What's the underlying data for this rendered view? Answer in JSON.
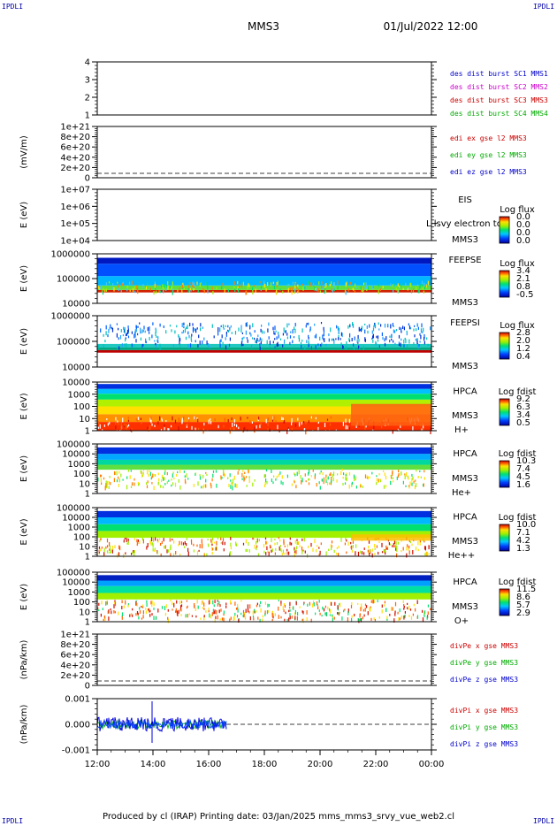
{
  "header": {
    "spacecraft": "MMS3",
    "datetime": "01/Jul/2022 12:00",
    "corner_mark": "IPDLI"
  },
  "footer": {
    "text": "Produced by cl (IRAP)    Printing date: 03/Jan/2025    mms_mms3_srvy_vue_web2.cl"
  },
  "time_axis": {
    "ticks": [
      "12:00",
      "14:00",
      "16:00",
      "18:00",
      "20:00",
      "22:00",
      "00:00"
    ]
  },
  "chart_data": [
    {
      "type": "line",
      "ylabel": "",
      "yticks": [
        "1",
        "2",
        "3",
        "4"
      ],
      "legend": [
        {
          "text": "des dist burst SC1 MMS1",
          "color": "#0000cc"
        },
        {
          "text": "des dist burst SC2 MMS2",
          "color": "#cc00cc"
        },
        {
          "text": "des dist burst SC3 MMS3",
          "color": "#cc0000"
        },
        {
          "text": "des dist burst SC4 MMS4",
          "color": "#00aa00"
        }
      ]
    },
    {
      "type": "line",
      "ylabel": "(mV/m)",
      "yticks": [
        "0",
        "2e+20",
        "4e+20",
        "6e+20",
        "8e+20",
        "1e+21"
      ],
      "legend": [
        {
          "text": "edi ex gse l2 MMS3",
          "color": "#cc0000"
        },
        {
          "text": "edi ey gse l2 MMS3",
          "color": "#00aa00"
        },
        {
          "text": "edi ez gse l2 MMS3",
          "color": "#0000cc"
        }
      ]
    },
    {
      "type": "heatmap",
      "ylabel": "E (eV)",
      "yticks": [
        "1e+04",
        "1e+05",
        "1e+06",
        "1e+07"
      ],
      "instrument": "EIS",
      "species": "",
      "overlay": "L lsvy electron to",
      "spacecraft": "MMS3",
      "cbar_title": "Log flux",
      "cbar_labels": [
        "0.0",
        "0.0",
        "0.0",
        "0.0"
      ]
    },
    {
      "type": "heatmap",
      "ylabel": "E (eV)",
      "yticks": [
        "10000",
        "100000",
        "1000000"
      ],
      "instrument": "FEEPSE",
      "species": "",
      "overlay": "",
      "spacecraft": "MMS3",
      "cbar_title": "Log flux",
      "cbar_labels": [
        "3.4",
        "2.1",
        "0.8",
        "-0.5"
      ]
    },
    {
      "type": "heatmap",
      "ylabel": "E (eV)",
      "yticks": [
        "10000",
        "100000",
        "1000000"
      ],
      "instrument": "FEEPSI",
      "species": "",
      "overlay": "",
      "spacecraft": "MMS3",
      "cbar_title": "Log flux",
      "cbar_labels": [
        "2.8",
        "2.0",
        "1.2",
        "0.4"
      ]
    },
    {
      "type": "heatmap",
      "ylabel": "E (eV)",
      "yticks": [
        "1",
        "10",
        "100",
        "1000",
        "10000"
      ],
      "instrument": "HPCA",
      "species": "H+",
      "overlay": "",
      "spacecraft": "MMS3",
      "cbar_title": "Log fdist",
      "cbar_labels": [
        "9.2",
        "6.3",
        "3.4",
        "0.5"
      ]
    },
    {
      "type": "heatmap",
      "ylabel": "E (eV)",
      "yticks": [
        "1",
        "10",
        "100",
        "1000",
        "10000",
        "100000"
      ],
      "instrument": "HPCA",
      "species": "He+",
      "overlay": "",
      "spacecraft": "MMS3",
      "cbar_title": "Log fdist",
      "cbar_labels": [
        "10.3",
        "7.4",
        "4.5",
        "1.6"
      ]
    },
    {
      "type": "heatmap",
      "ylabel": "E (eV)",
      "yticks": [
        "1",
        "10",
        "100",
        "1000",
        "10000",
        "100000"
      ],
      "instrument": "HPCA",
      "species": "He++",
      "overlay": "",
      "spacecraft": "MMS3",
      "cbar_title": "Log fdist",
      "cbar_labels": [
        "10.0",
        "7.1",
        "4.2",
        "1.3"
      ]
    },
    {
      "type": "heatmap",
      "ylabel": "E (eV)",
      "yticks": [
        "1",
        "10",
        "100",
        "1000",
        "10000",
        "100000"
      ],
      "instrument": "HPCA",
      "species": "O+",
      "overlay": "",
      "spacecraft": "MMS3",
      "cbar_title": "Log fdist",
      "cbar_labels": [
        "11.5",
        "8.6",
        "5.7",
        "2.9"
      ]
    },
    {
      "type": "line",
      "ylabel": "(nPa/km)",
      "yticks": [
        "0",
        "2e+20",
        "4e+20",
        "6e+20",
        "8e+20",
        "1e+21"
      ],
      "legend": [
        {
          "text": "divPe x gse MMS3",
          "color": "#cc0000"
        },
        {
          "text": "divPe y gse MMS3",
          "color": "#00aa00"
        },
        {
          "text": "divPe z gse MMS3",
          "color": "#0000cc"
        }
      ]
    },
    {
      "type": "line",
      "ylabel": "(nPa/km)",
      "yticks": [
        "-0.001",
        "0.000",
        "0.001"
      ],
      "legend": [
        {
          "text": "divPi x gse MMS3",
          "color": "#cc0000"
        },
        {
          "text": "divPi y gse MMS3",
          "color": "#00aa00"
        },
        {
          "text": "divPi z gse MMS3",
          "color": "#0000cc"
        }
      ]
    }
  ]
}
